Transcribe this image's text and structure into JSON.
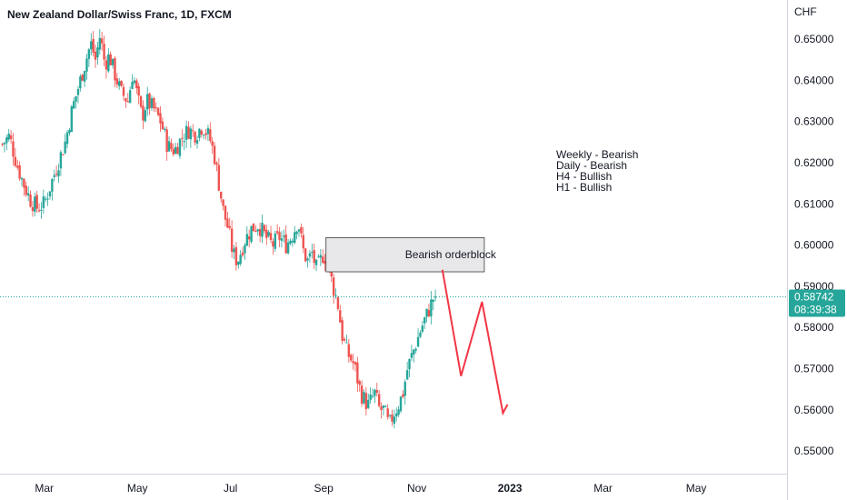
{
  "title": "New Zealand Dollar/Swiss Franc, 1D, FXCM",
  "chart_data": {
    "type": "candlestick",
    "currency_label": "CHF",
    "ylim": [
      0.5445,
      0.6595
    ],
    "y_ticks": [
      "0.65000",
      "0.64000",
      "0.63000",
      "0.62000",
      "0.61000",
      "0.60000",
      "0.59000",
      "0.58000",
      "0.57000",
      "0.56000",
      "0.55000"
    ],
    "x_ticks": [
      {
        "label": "Mar",
        "month_index": 2.0,
        "bold": false
      },
      {
        "label": "May",
        "month_index": 4.0,
        "bold": false
      },
      {
        "label": "Jul",
        "month_index": 6.0,
        "bold": false
      },
      {
        "label": "Sep",
        "month_index": 8.0,
        "bold": false
      },
      {
        "label": "Nov",
        "month_index": 10.0,
        "bold": false
      },
      {
        "label": "2023",
        "month_index": 12.0,
        "bold": true
      },
      {
        "label": "Mar",
        "month_index": 14.0,
        "bold": false
      },
      {
        "label": "May",
        "month_index": 16.0,
        "bold": false
      }
    ],
    "x_domain_months": [
      1.05,
      17.95
    ],
    "up_color": "#26a69a",
    "down_color": "#ef5350",
    "projection_color": "#f23645",
    "close_path": [
      [
        1.1,
        0.6245
      ],
      [
        1.25,
        0.6265
      ],
      [
        1.4,
        0.62
      ],
      [
        1.55,
        0.615
      ],
      [
        1.7,
        0.611
      ],
      [
        1.85,
        0.609
      ],
      [
        2.0,
        0.61
      ],
      [
        2.15,
        0.615
      ],
      [
        2.3,
        0.62
      ],
      [
        2.45,
        0.625
      ],
      [
        2.6,
        0.633
      ],
      [
        2.75,
        0.639
      ],
      [
        2.9,
        0.645
      ],
      [
        3.0,
        0.649
      ],
      [
        3.1,
        0.645
      ],
      [
        3.2,
        0.651
      ],
      [
        3.3,
        0.644
      ],
      [
        3.4,
        0.646
      ],
      [
        3.5,
        0.642
      ],
      [
        3.65,
        0.637
      ],
      [
        3.8,
        0.635
      ],
      [
        3.9,
        0.642
      ],
      [
        4.0,
        0.636
      ],
      [
        4.1,
        0.631
      ],
      [
        4.2,
        0.635
      ],
      [
        4.35,
        0.633
      ],
      [
        4.5,
        0.63
      ],
      [
        4.65,
        0.624
      ],
      [
        4.8,
        0.623
      ],
      [
        4.95,
        0.626
      ],
      [
        5.1,
        0.628
      ],
      [
        5.25,
        0.627
      ],
      [
        5.4,
        0.629
      ],
      [
        5.55,
        0.626
      ],
      [
        5.65,
        0.622
      ],
      [
        5.75,
        0.615
      ],
      [
        5.85,
        0.608
      ],
      [
        5.95,
        0.604
      ],
      [
        6.05,
        0.598
      ],
      [
        6.15,
        0.596
      ],
      [
        6.3,
        0.601
      ],
      [
        6.45,
        0.604
      ],
      [
        6.6,
        0.605
      ],
      [
        6.75,
        0.602
      ],
      [
        6.9,
        0.6
      ],
      [
        7.05,
        0.602
      ],
      [
        7.2,
        0.6
      ],
      [
        7.35,
        0.603
      ],
      [
        7.45,
        0.606
      ],
      [
        7.55,
        0.599
      ],
      [
        7.65,
        0.596
      ],
      [
        7.75,
        0.598
      ],
      [
        7.85,
        0.594
      ],
      [
        8.0,
        0.598
      ],
      [
        8.1,
        0.595
      ],
      [
        8.2,
        0.59
      ],
      [
        8.3,
        0.586
      ],
      [
        8.4,
        0.578
      ],
      [
        8.5,
        0.574
      ],
      [
        8.65,
        0.571
      ],
      [
        8.8,
        0.564
      ],
      [
        8.95,
        0.561
      ],
      [
        9.1,
        0.564
      ],
      [
        9.2,
        0.56
      ],
      [
        9.3,
        0.56
      ],
      [
        9.4,
        0.556
      ],
      [
        9.5,
        0.559
      ],
      [
        9.6,
        0.561
      ],
      [
        9.7,
        0.564
      ],
      [
        9.8,
        0.57
      ],
      [
        9.95,
        0.575
      ],
      [
        10.1,
        0.58
      ],
      [
        10.25,
        0.584
      ],
      [
        10.35,
        0.587
      ],
      [
        10.4,
        0.58742
      ]
    ],
    "current_price": {
      "value": "0.58742",
      "countdown": "08:39:38",
      "y": 0.58742
    },
    "orderblock": {
      "label": "Bearish orderblock",
      "top": 0.6018,
      "bottom": 0.5935,
      "x_start": 8.05,
      "x_end": 11.45
    },
    "projection_path": [
      [
        10.55,
        0.594
      ],
      [
        10.95,
        0.5682
      ],
      [
        11.4,
        0.5862
      ],
      [
        11.85,
        0.5592
      ],
      [
        11.95,
        0.5613
      ]
    ],
    "notes": [
      "Weekly - Bearish",
      "Daily - Bearish",
      "H4 - Bullish",
      "H1 - Bullish"
    ]
  }
}
